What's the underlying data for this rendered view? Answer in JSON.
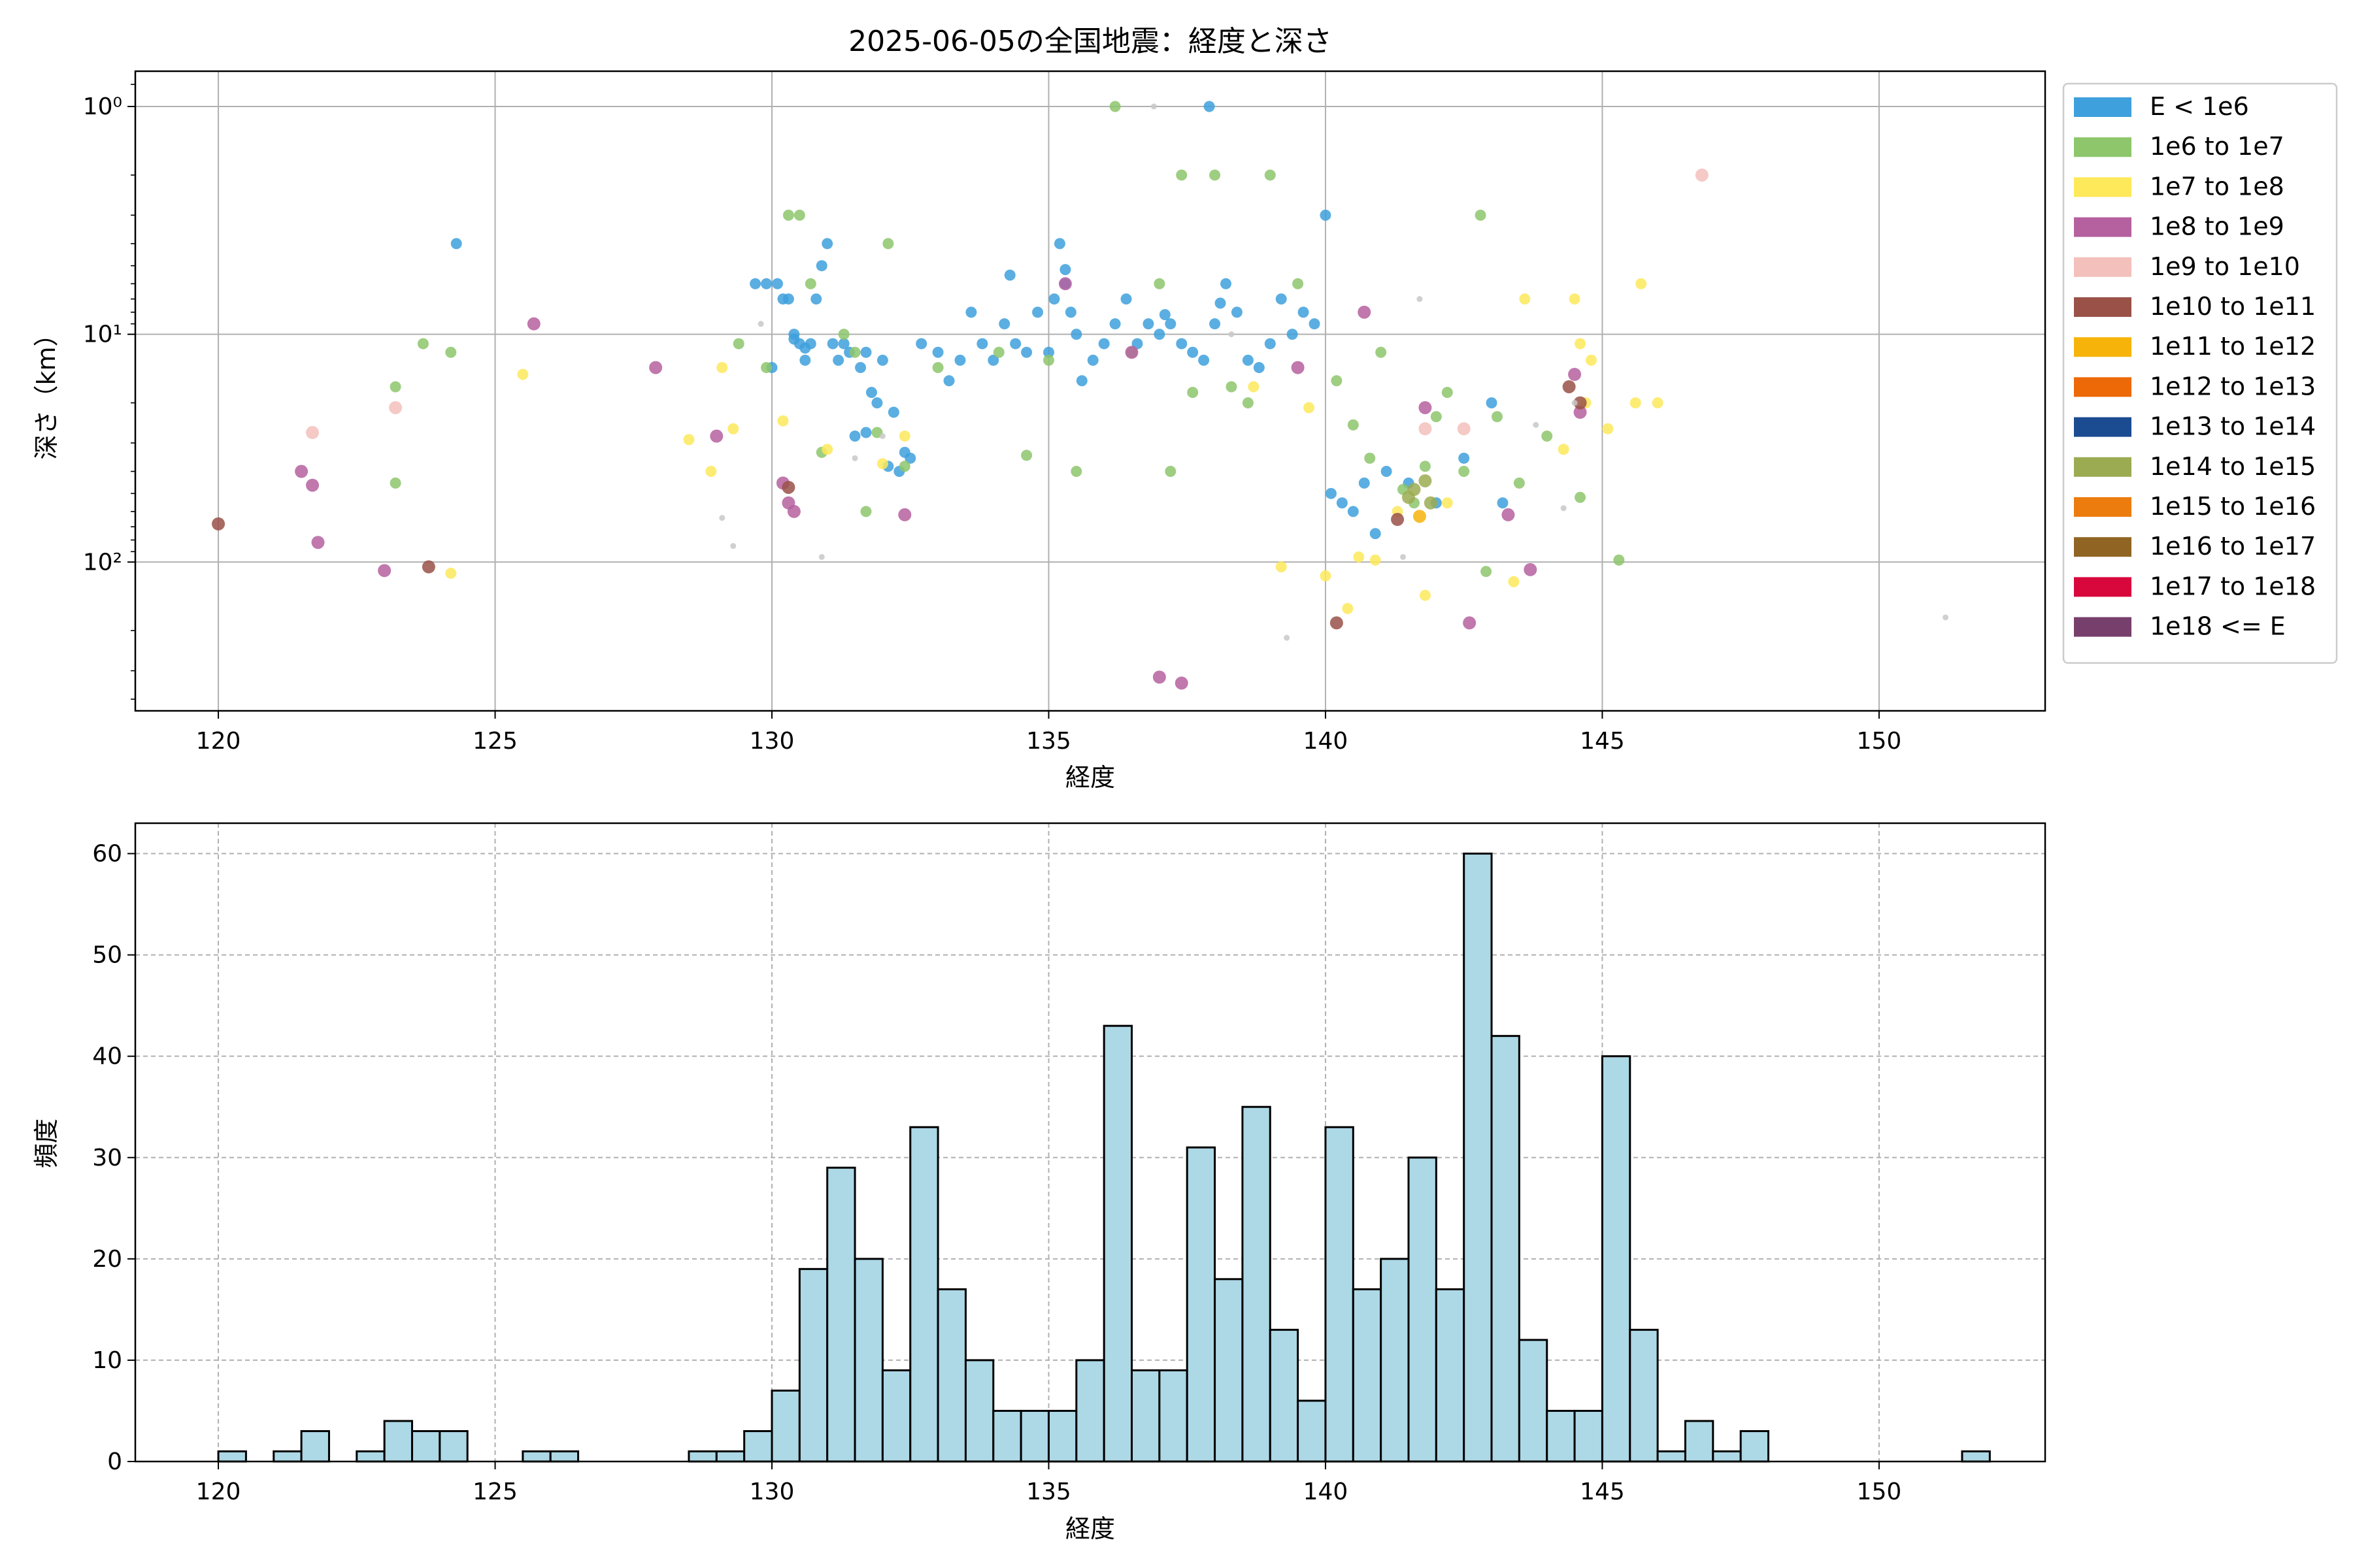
{
  "chart_data": [
    {
      "type": "scatter",
      "title": "2025-06-05の全国地震：経度と深さ",
      "xlabel": "経度",
      "ylabel": "深さ（km）",
      "xlim": [
        118.5,
        153.0
      ],
      "ylim": [
        450,
        0.7
      ],
      "y_scale": "log",
      "y_inverted": true,
      "grid": true,
      "xticks": [
        120,
        125,
        130,
        135,
        140,
        145,
        150
      ],
      "yticks": [
        {
          "value": 1,
          "label": "10⁰"
        },
        {
          "value": 10,
          "label": "10¹"
        },
        {
          "value": 100,
          "label": "10²"
        }
      ],
      "legend": {
        "placement": "outside-right",
        "entries": [
          {
            "label": "E < 1e6",
            "color": "#3ea0dc"
          },
          {
            "label": "1e6 to 1e7",
            "color": "#8dc66b"
          },
          {
            "label": "1e7 to 1e8",
            "color": "#fde95a"
          },
          {
            "label": "1e8 to 1e9",
            "color": "#b5609f"
          },
          {
            "label": "1e9 to 1e10",
            "color": "#f3c0bb"
          },
          {
            "label": "1e10 to 1e11",
            "color": "#995148"
          },
          {
            "label": "1e11 to 1e12",
            "color": "#f6b40b"
          },
          {
            "label": "1e12 to 1e13",
            "color": "#ed6807"
          },
          {
            "label": "1e13 to 1e14",
            "color": "#1b4b90"
          },
          {
            "label": "1e14 to 1e15",
            "color": "#9bab51"
          },
          {
            "label": "1e15 to 1e16",
            "color": "#ec7c0e"
          },
          {
            "label": "1e16 to 1e17",
            "color": "#906523"
          },
          {
            "label": "1e17 to 1e18",
            "color": "#d8073c"
          },
          {
            "label": "1e18 <= E",
            "color": "#773f6c"
          }
        ]
      },
      "series": [
        {
          "color": "#3ea0dc",
          "points": [
            [
              124.3,
              4
            ],
            [
              129.7,
              6
            ],
            [
              129.9,
              6
            ],
            [
              130.0,
              14
            ],
            [
              130.1,
              6
            ],
            [
              130.2,
              7
            ],
            [
              130.3,
              7
            ],
            [
              130.4,
              10
            ],
            [
              130.5,
              11
            ],
            [
              130.6,
              13
            ],
            [
              130.7,
              11
            ],
            [
              130.8,
              7
            ],
            [
              130.9,
              5
            ],
            [
              131.0,
              4
            ],
            [
              131.1,
              11
            ],
            [
              131.2,
              13
            ],
            [
              131.3,
              11
            ],
            [
              131.4,
              12
            ],
            [
              131.6,
              14
            ],
            [
              131.7,
              12
            ],
            [
              131.8,
              18
            ],
            [
              131.9,
              20
            ],
            [
              132.0,
              13
            ],
            [
              132.1,
              38
            ],
            [
              132.3,
              40
            ],
            [
              132.5,
              35
            ],
            [
              132.7,
              11
            ],
            [
              133.0,
              12
            ],
            [
              133.2,
              16
            ],
            [
              133.4,
              13
            ],
            [
              133.6,
              8
            ],
            [
              133.8,
              11
            ],
            [
              134.0,
              13
            ],
            [
              134.2,
              9
            ],
            [
              134.4,
              11
            ],
            [
              134.6,
              12
            ],
            [
              134.8,
              8
            ],
            [
              135.0,
              12
            ],
            [
              135.1,
              7
            ],
            [
              135.2,
              4
            ],
            [
              135.3,
              6
            ],
            [
              135.4,
              8
            ],
            [
              135.5,
              10
            ],
            [
              135.6,
              16
            ],
            [
              135.8,
              13
            ],
            [
              136.0,
              11
            ],
            [
              136.2,
              9
            ],
            [
              136.4,
              7
            ],
            [
              136.6,
              11
            ],
            [
              136.8,
              9
            ],
            [
              137.0,
              10
            ],
            [
              137.2,
              9
            ],
            [
              137.4,
              11
            ],
            [
              137.6,
              12
            ],
            [
              137.8,
              13
            ],
            [
              137.9,
              1
            ],
            [
              138.0,
              9
            ],
            [
              138.2,
              6
            ],
            [
              138.4,
              8
            ],
            [
              138.6,
              13
            ],
            [
              138.8,
              14
            ],
            [
              139.0,
              11
            ],
            [
              139.2,
              7
            ],
            [
              139.4,
              10
            ],
            [
              139.6,
              8
            ],
            [
              139.8,
              9
            ],
            [
              140.0,
              3
            ],
            [
              140.1,
              50
            ],
            [
              140.3,
              55
            ],
            [
              140.5,
              60
            ],
            [
              140.7,
              45
            ],
            [
              140.9,
              75
            ],
            [
              141.1,
              40
            ],
            [
              141.5,
              45
            ],
            [
              142.0,
              55
            ],
            [
              142.5,
              35
            ],
            [
              143.0,
              20
            ],
            [
              143.2,
              55
            ],
            [
              132.2,
              22
            ],
            [
              132.4,
              33
            ],
            [
              131.5,
              28
            ],
            [
              131.7,
              27
            ],
            [
              135.3,
              5.2
            ],
            [
              134.3,
              5.5
            ],
            [
              130.4,
              10.5
            ],
            [
              130.6,
              11.5
            ],
            [
              137.1,
              8.2
            ],
            [
              138.1,
              7.3
            ]
          ]
        },
        {
          "color": "#8dc66b",
          "points": [
            [
              123.2,
              17
            ],
            [
              123.2,
              45
            ],
            [
              123.7,
              11
            ],
            [
              124.2,
              12
            ],
            [
              129.4,
              11
            ],
            [
              129.9,
              14
            ],
            [
              130.3,
              3
            ],
            [
              130.5,
              3
            ],
            [
              130.7,
              6
            ],
            [
              130.9,
              33
            ],
            [
              131.3,
              10
            ],
            [
              131.5,
              12
            ],
            [
              131.7,
              60
            ],
            [
              131.9,
              27
            ],
            [
              132.1,
              4
            ],
            [
              132.4,
              38
            ],
            [
              133.0,
              14
            ],
            [
              134.1,
              12
            ],
            [
              134.6,
              34
            ],
            [
              135.0,
              13
            ],
            [
              135.5,
              40
            ],
            [
              136.2,
              1
            ],
            [
              136.5,
              12
            ],
            [
              137.0,
              6
            ],
            [
              137.2,
              40
            ],
            [
              137.4,
              2
            ],
            [
              137.6,
              18
            ],
            [
              138.0,
              2
            ],
            [
              138.3,
              17
            ],
            [
              138.6,
              20
            ],
            [
              139.0,
              2
            ],
            [
              139.5,
              6
            ],
            [
              140.2,
              16
            ],
            [
              140.5,
              25
            ],
            [
              140.8,
              35
            ],
            [
              141.0,
              12
            ],
            [
              141.4,
              48
            ],
            [
              141.6,
              55
            ],
            [
              141.8,
              38
            ],
            [
              142.0,
              23
            ],
            [
              142.2,
              18
            ],
            [
              142.5,
              40
            ],
            [
              142.8,
              3
            ],
            [
              142.9,
              110
            ],
            [
              143.1,
              23
            ],
            [
              143.5,
              45
            ],
            [
              144.0,
              28
            ],
            [
              144.6,
              52
            ],
            [
              145.3,
              98
            ]
          ]
        },
        {
          "color": "#fde95a",
          "points": [
            [
              124.2,
              112
            ],
            [
              125.5,
              15
            ],
            [
              128.5,
              29
            ],
            [
              128.9,
              40
            ],
            [
              129.1,
              14
            ],
            [
              129.3,
              26
            ],
            [
              130.2,
              24
            ],
            [
              131.0,
              32
            ],
            [
              132.0,
              37
            ],
            [
              132.4,
              28
            ],
            [
              138.7,
              17
            ],
            [
              139.2,
              105
            ],
            [
              139.7,
              21
            ],
            [
              140.0,
              115
            ],
            [
              140.4,
              160
            ],
            [
              140.6,
              95
            ],
            [
              140.9,
              98
            ],
            [
              141.3,
              60
            ],
            [
              141.8,
              140
            ],
            [
              142.2,
              55
            ],
            [
              143.4,
              122
            ],
            [
              143.6,
              7
            ],
            [
              144.3,
              32
            ],
            [
              144.5,
              7
            ],
            [
              144.6,
              11
            ],
            [
              144.7,
              20
            ],
            [
              144.8,
              13
            ],
            [
              145.1,
              26
            ],
            [
              145.6,
              20
            ],
            [
              146.0,
              20
            ],
            [
              145.7,
              6
            ]
          ]
        },
        {
          "color": "#b5609f",
          "points": [
            [
              121.5,
              40
            ],
            [
              121.7,
              46
            ],
            [
              121.8,
              82
            ],
            [
              123.0,
              109
            ],
            [
              125.7,
              9
            ],
            [
              127.9,
              14
            ],
            [
              129.0,
              28
            ],
            [
              130.2,
              45
            ],
            [
              130.3,
              55
            ],
            [
              130.4,
              60
            ],
            [
              132.4,
              62
            ],
            [
              135.3,
              6
            ],
            [
              136.5,
              12
            ],
            [
              137.0,
              320
            ],
            [
              137.4,
              340
            ],
            [
              139.5,
              14
            ],
            [
              140.7,
              8
            ],
            [
              141.8,
              21
            ],
            [
              143.3,
              62
            ],
            [
              143.7,
              108
            ],
            [
              142.6,
              185
            ],
            [
              144.5,
              15
            ],
            [
              144.6,
              22
            ]
          ]
        },
        {
          "color": "#f3c0bb",
          "points": [
            [
              121.7,
              27
            ],
            [
              123.2,
              21
            ],
            [
              141.8,
              26
            ],
            [
              142.5,
              26
            ],
            [
              146.8,
              2
            ]
          ]
        },
        {
          "color": "#995148",
          "points": [
            [
              120.0,
              68
            ],
            [
              123.8,
              105
            ],
            [
              130.3,
              47
            ],
            [
              140.2,
              185
            ],
            [
              141.3,
              65
            ],
            [
              144.4,
              17
            ],
            [
              144.6,
              20
            ]
          ]
        },
        {
          "color": "#f6b40b",
          "points": [
            [
              141.7,
              63
            ]
          ]
        },
        {
          "color": "#9bab51",
          "points": [
            [
              141.6,
              48
            ],
            [
              141.8,
              44
            ],
            [
              141.5,
              52
            ],
            [
              141.9,
              55
            ]
          ]
        },
        {
          "color": "#c8c8c8",
          "points": [
            [
              129.1,
              64
            ],
            [
              129.3,
              85
            ],
            [
              129.8,
              9
            ],
            [
              130.9,
              95
            ],
            [
              131.5,
              35
            ],
            [
              132.0,
              28
            ],
            [
              136.9,
              1
            ],
            [
              138.3,
              10
            ],
            [
              139.3,
              215
            ],
            [
              141.4,
              95
            ],
            [
              141.7,
              7
            ],
            [
              143.8,
              25
            ],
            [
              144.3,
              58
            ],
            [
              144.5,
              20
            ],
            [
              151.2,
              175
            ]
          ]
        }
      ]
    },
    {
      "type": "bar",
      "title": "",
      "xlabel": "経度",
      "ylabel": "頻度",
      "xlim": [
        118.5,
        153.0
      ],
      "ylim": [
        0,
        63
      ],
      "grid": true,
      "bar_color": "#add8e6",
      "edge_color": "#000000",
      "bin_start": 120.0,
      "bin_width": 0.5,
      "values": [
        1,
        0,
        1,
        3,
        0,
        1,
        4,
        3,
        3,
        0,
        0,
        1,
        1,
        0,
        0,
        0,
        0,
        1,
        1,
        3,
        7,
        19,
        29,
        20,
        9,
        33,
        17,
        10,
        5,
        5,
        5,
        10,
        43,
        9,
        9,
        31,
        18,
        35,
        13,
        6,
        33,
        17,
        20,
        30,
        17,
        60,
        42,
        12,
        5,
        5,
        40,
        13,
        1,
        4,
        1,
        3,
        0,
        0,
        0,
        0,
        0,
        0,
        0,
        1
      ],
      "xticks": [
        120,
        125,
        130,
        135,
        140,
        145,
        150
      ],
      "yticks": [
        0,
        10,
        20,
        30,
        40,
        50,
        60
      ]
    }
  ]
}
